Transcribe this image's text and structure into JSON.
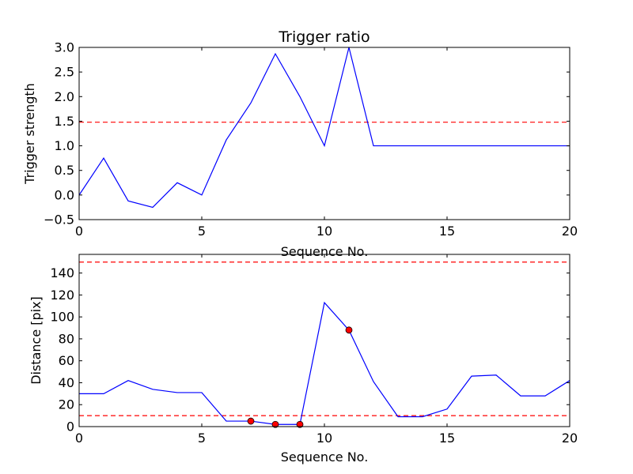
{
  "chart_data": [
    {
      "type": "line",
      "title": "Trigger ratio",
      "xlabel": "Sequence No.",
      "ylabel": "Trigger strength",
      "xlim": [
        0,
        20
      ],
      "ylim": [
        -0.5,
        3.0
      ],
      "xticks": [
        "0",
        "5",
        "10",
        "15",
        "20"
      ],
      "xtick_values": [
        0,
        5,
        10,
        15,
        20
      ],
      "yticks": [
        "−0.5",
        "0.0",
        "0.5",
        "1.0",
        "1.5",
        "2.0",
        "2.5",
        "3.0"
      ],
      "ytick_values": [
        -0.5,
        0.0,
        0.5,
        1.0,
        1.5,
        2.0,
        2.5,
        3.0
      ],
      "grid": false,
      "series": [
        {
          "x": [
            0,
            1,
            2,
            3,
            4,
            5,
            6,
            7,
            8,
            9,
            10,
            11,
            12,
            13,
            14,
            15,
            16,
            17,
            18,
            19,
            20
          ],
          "values": [
            0.0,
            0.75,
            -0.12,
            -0.25,
            0.25,
            0.0,
            1.12,
            1.87,
            2.87,
            2.0,
            1.0,
            3.0,
            1.0,
            1.0,
            1.0,
            1.0,
            1.0,
            1.0,
            1.0,
            1.0,
            1.0
          ],
          "color": "#0000ff",
          "style": "solid"
        }
      ],
      "hlines": [
        {
          "y": 1.48,
          "color": "#ff0000",
          "style": "dashed"
        }
      ]
    },
    {
      "type": "line",
      "title": "",
      "xlabel": "Sequence No.",
      "ylabel": "Distance [pix]",
      "xlim": [
        0,
        20
      ],
      "ylim": [
        0,
        157
      ],
      "xticks": [
        "0",
        "5",
        "10",
        "15",
        "20"
      ],
      "xtick_values": [
        0,
        5,
        10,
        15,
        20
      ],
      "yticks": [
        "0",
        "20",
        "40",
        "60",
        "80",
        "100",
        "120",
        "140"
      ],
      "ytick_values": [
        0,
        20,
        40,
        60,
        80,
        100,
        120,
        140
      ],
      "grid": false,
      "series": [
        {
          "x": [
            0,
            1,
            2,
            3,
            4,
            5,
            6,
            7,
            8,
            9,
            10,
            11,
            12,
            13,
            14,
            15,
            16,
            17,
            18,
            19,
            20
          ],
          "values": [
            30,
            30,
            42,
            34,
            31,
            31,
            5,
            5,
            2,
            2,
            113,
            88,
            41,
            9,
            9,
            16,
            46,
            47,
            28,
            28,
            42
          ],
          "color": "#0000ff",
          "style": "solid"
        }
      ],
      "markers": {
        "x": [
          7,
          8,
          9,
          11
        ],
        "values": [
          5,
          2,
          2,
          88
        ],
        "color": "#ff0000"
      },
      "hlines": [
        {
          "y": 150,
          "color": "#ff0000",
          "style": "dashed"
        },
        {
          "y": 10,
          "color": "#ff0000",
          "style": "dashed"
        }
      ]
    }
  ]
}
